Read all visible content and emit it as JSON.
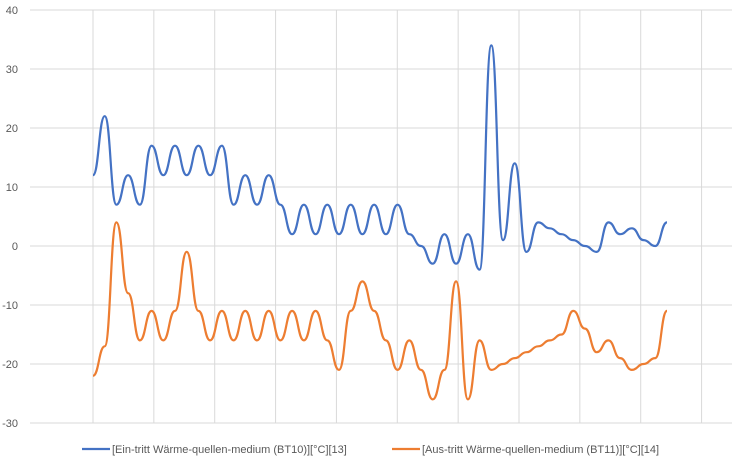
{
  "chart_data": {
    "type": "line",
    "title": "",
    "xlabel": "",
    "ylabel": "",
    "ylim": [
      -30,
      40
    ],
    "y_ticks": [
      40,
      30,
      20,
      10,
      0,
      -10,
      -20,
      -30
    ],
    "grid": true,
    "legend_position": "bottom",
    "series": [
      {
        "name": "[Ein-tritt Wärme-quellen-medium (BT10)][°C][13]",
        "color": "#4472C4",
        "x": [
          1,
          2,
          3,
          4,
          5,
          6,
          7,
          8,
          9,
          10,
          11,
          12,
          13,
          14,
          15,
          16,
          17,
          18,
          19,
          20,
          21,
          22,
          23,
          24,
          25,
          26,
          27,
          28,
          29,
          30,
          31,
          32,
          33,
          34,
          35,
          36,
          37,
          38,
          39,
          40,
          41,
          42,
          43,
          44,
          45,
          46,
          47,
          48,
          49,
          50
        ],
        "y": [
          12,
          22,
          7,
          12,
          7,
          17,
          12,
          17,
          12,
          17,
          12,
          17,
          7,
          12,
          7,
          12,
          7,
          2,
          7,
          2,
          7,
          2,
          7,
          2,
          7,
          2,
          7,
          2,
          0,
          -3,
          2,
          -3,
          2,
          -4,
          34,
          1,
          14,
          -1,
          4,
          3,
          2,
          1,
          0,
          -1,
          4,
          2,
          3,
          1,
          0,
          4
        ]
      },
      {
        "name": "[Aus-tritt Wärme-quellen-medium (BT11)][°C][14]",
        "color": "#ED7D31",
        "x": [
          1,
          2,
          3,
          4,
          5,
          6,
          7,
          8,
          9,
          10,
          11,
          12,
          13,
          14,
          15,
          16,
          17,
          18,
          19,
          20,
          21,
          22,
          23,
          24,
          25,
          26,
          27,
          28,
          29,
          30,
          31,
          32,
          33,
          34,
          35,
          36,
          37,
          38,
          39,
          40,
          41,
          42,
          43,
          44,
          45,
          46,
          47,
          48,
          49,
          50
        ],
        "y": [
          -22,
          -17,
          4,
          -8,
          -16,
          -11,
          -16,
          -11,
          -1,
          -11,
          -16,
          -11,
          -16,
          -11,
          -16,
          -11,
          -16,
          -11,
          -16,
          -11,
          -16,
          -21,
          -11,
          -6,
          -11,
          -16,
          -21,
          -16,
          -21,
          -26,
          -21,
          -6,
          -26,
          -16,
          -21,
          -20,
          -19,
          -18,
          -17,
          -16,
          -15,
          -11,
          -14,
          -18,
          -16,
          -19,
          -21,
          -20,
          -19,
          -11
        ]
      }
    ]
  }
}
